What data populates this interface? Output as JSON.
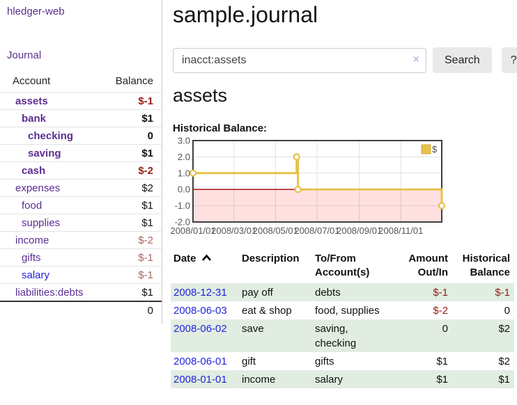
{
  "app": {
    "title": "hledger-web"
  },
  "sidebar": {
    "nav": [
      {
        "label": "Journal"
      }
    ],
    "accounts_table": {
      "headers": [
        "Account",
        "Balance"
      ],
      "rows": [
        {
          "name": "assets",
          "balance": "$-1",
          "depth": 1,
          "bold": true,
          "link": "purple",
          "bal": "negstrong"
        },
        {
          "name": "bank",
          "balance": "$1",
          "depth": 2,
          "bold": true,
          "link": "purple",
          "bal": "pos"
        },
        {
          "name": "checking",
          "balance": "0",
          "depth": 3,
          "bold": true,
          "link": "purple",
          "bal": "pos"
        },
        {
          "name": "saving",
          "balance": "$1",
          "depth": 3,
          "bold": true,
          "link": "purple",
          "bal": "pos"
        },
        {
          "name": "cash",
          "balance": "$-2",
          "depth": 2,
          "bold": true,
          "link": "purple",
          "bal": "negstrong"
        },
        {
          "name": "expenses",
          "balance": "$2",
          "depth": 1,
          "bold": false,
          "link": "purple",
          "bal": "pos"
        },
        {
          "name": "food",
          "balance": "$1",
          "depth": 2,
          "bold": false,
          "link": "purple",
          "bal": "pos"
        },
        {
          "name": "supplies",
          "balance": "$1",
          "depth": 2,
          "bold": false,
          "link": "purple",
          "bal": "pos"
        },
        {
          "name": "income",
          "balance": "$-2",
          "depth": 1,
          "bold": false,
          "link": "purple",
          "bal": "negmuted"
        },
        {
          "name": "gifts",
          "balance": "$-1",
          "depth": 2,
          "bold": false,
          "link": "purple",
          "bal": "negmuted"
        },
        {
          "name": "salary",
          "balance": "$-1",
          "depth": 2,
          "bold": false,
          "link": "blue",
          "bal": "negmuted"
        },
        {
          "name": "liabilities:debts",
          "balance": "$1",
          "depth": 1,
          "bold": false,
          "link": "purple",
          "bal": "pos"
        }
      ],
      "total": "0"
    }
  },
  "main": {
    "title": "sample.journal",
    "search": {
      "value": "inacct:assets",
      "clear_icon": "×",
      "button": "Search",
      "help_button": "?"
    },
    "account_heading": "assets",
    "chart_label": "Historical Balance:"
  },
  "chart_data": {
    "type": "line",
    "title": "Historical Balance",
    "step": true,
    "series": [
      {
        "name": "$",
        "color": "#e8c14a",
        "points": [
          {
            "date": "2008-01-01",
            "value": 1
          },
          {
            "date": "2008-06-01",
            "value": 2
          },
          {
            "date": "2008-06-03",
            "value": 0
          },
          {
            "date": "2008-12-31",
            "value": -1
          }
        ]
      }
    ],
    "ylim": [
      -2.0,
      3.0
    ],
    "yticks": [
      3.0,
      2.0,
      1.0,
      0.0,
      -1.0,
      -2.0
    ],
    "xticks": [
      "2008/01/01",
      "2008/03/01",
      "2008/05/01",
      "2008/07/01",
      "2008/09/01",
      "2008/11/01"
    ],
    "xrange": [
      "2008-01-01",
      "2008-12-31"
    ],
    "grid": true,
    "legend": {
      "label": "$",
      "position": "top-right"
    },
    "colors": {
      "negative_region": "rgba(255,0,0,0.12)",
      "zero_line": "#a00000",
      "grid_line": "#e0e0e0",
      "border": "#3f3f3f",
      "tick_text": "#545454"
    }
  },
  "register_table": {
    "headers": [
      {
        "label": "Date",
        "sort": "asc"
      },
      {
        "label": "Description"
      },
      {
        "label": "To/From Account(s)"
      },
      {
        "label": "Amount Out/In",
        "align": "right"
      },
      {
        "label": "Historical Balance",
        "align": "right"
      }
    ],
    "rows": [
      {
        "date": "2008-12-31",
        "description": "pay off",
        "accounts": "debts",
        "amount": "$-1",
        "amount_negative": true,
        "balance": "$-1",
        "balance_negative": true
      },
      {
        "date": "2008-06-03",
        "description": "eat & shop",
        "accounts": "food, supplies",
        "amount": "$-2",
        "amount_negative": true,
        "balance": "0",
        "balance_negative": false
      },
      {
        "date": "2008-06-02",
        "description": "save",
        "accounts": "saving, checking",
        "amount": "0",
        "amount_negative": false,
        "balance": "$2",
        "balance_negative": false
      },
      {
        "date": "2008-06-01",
        "description": "gift",
        "accounts": "gifts",
        "amount": "$1",
        "amount_negative": false,
        "balance": "$2",
        "balance_negative": false
      },
      {
        "date": "2008-01-01",
        "description": "income",
        "accounts": "salary",
        "amount": "$1",
        "amount_negative": false,
        "balance": "$1",
        "balance_negative": false
      }
    ]
  }
}
